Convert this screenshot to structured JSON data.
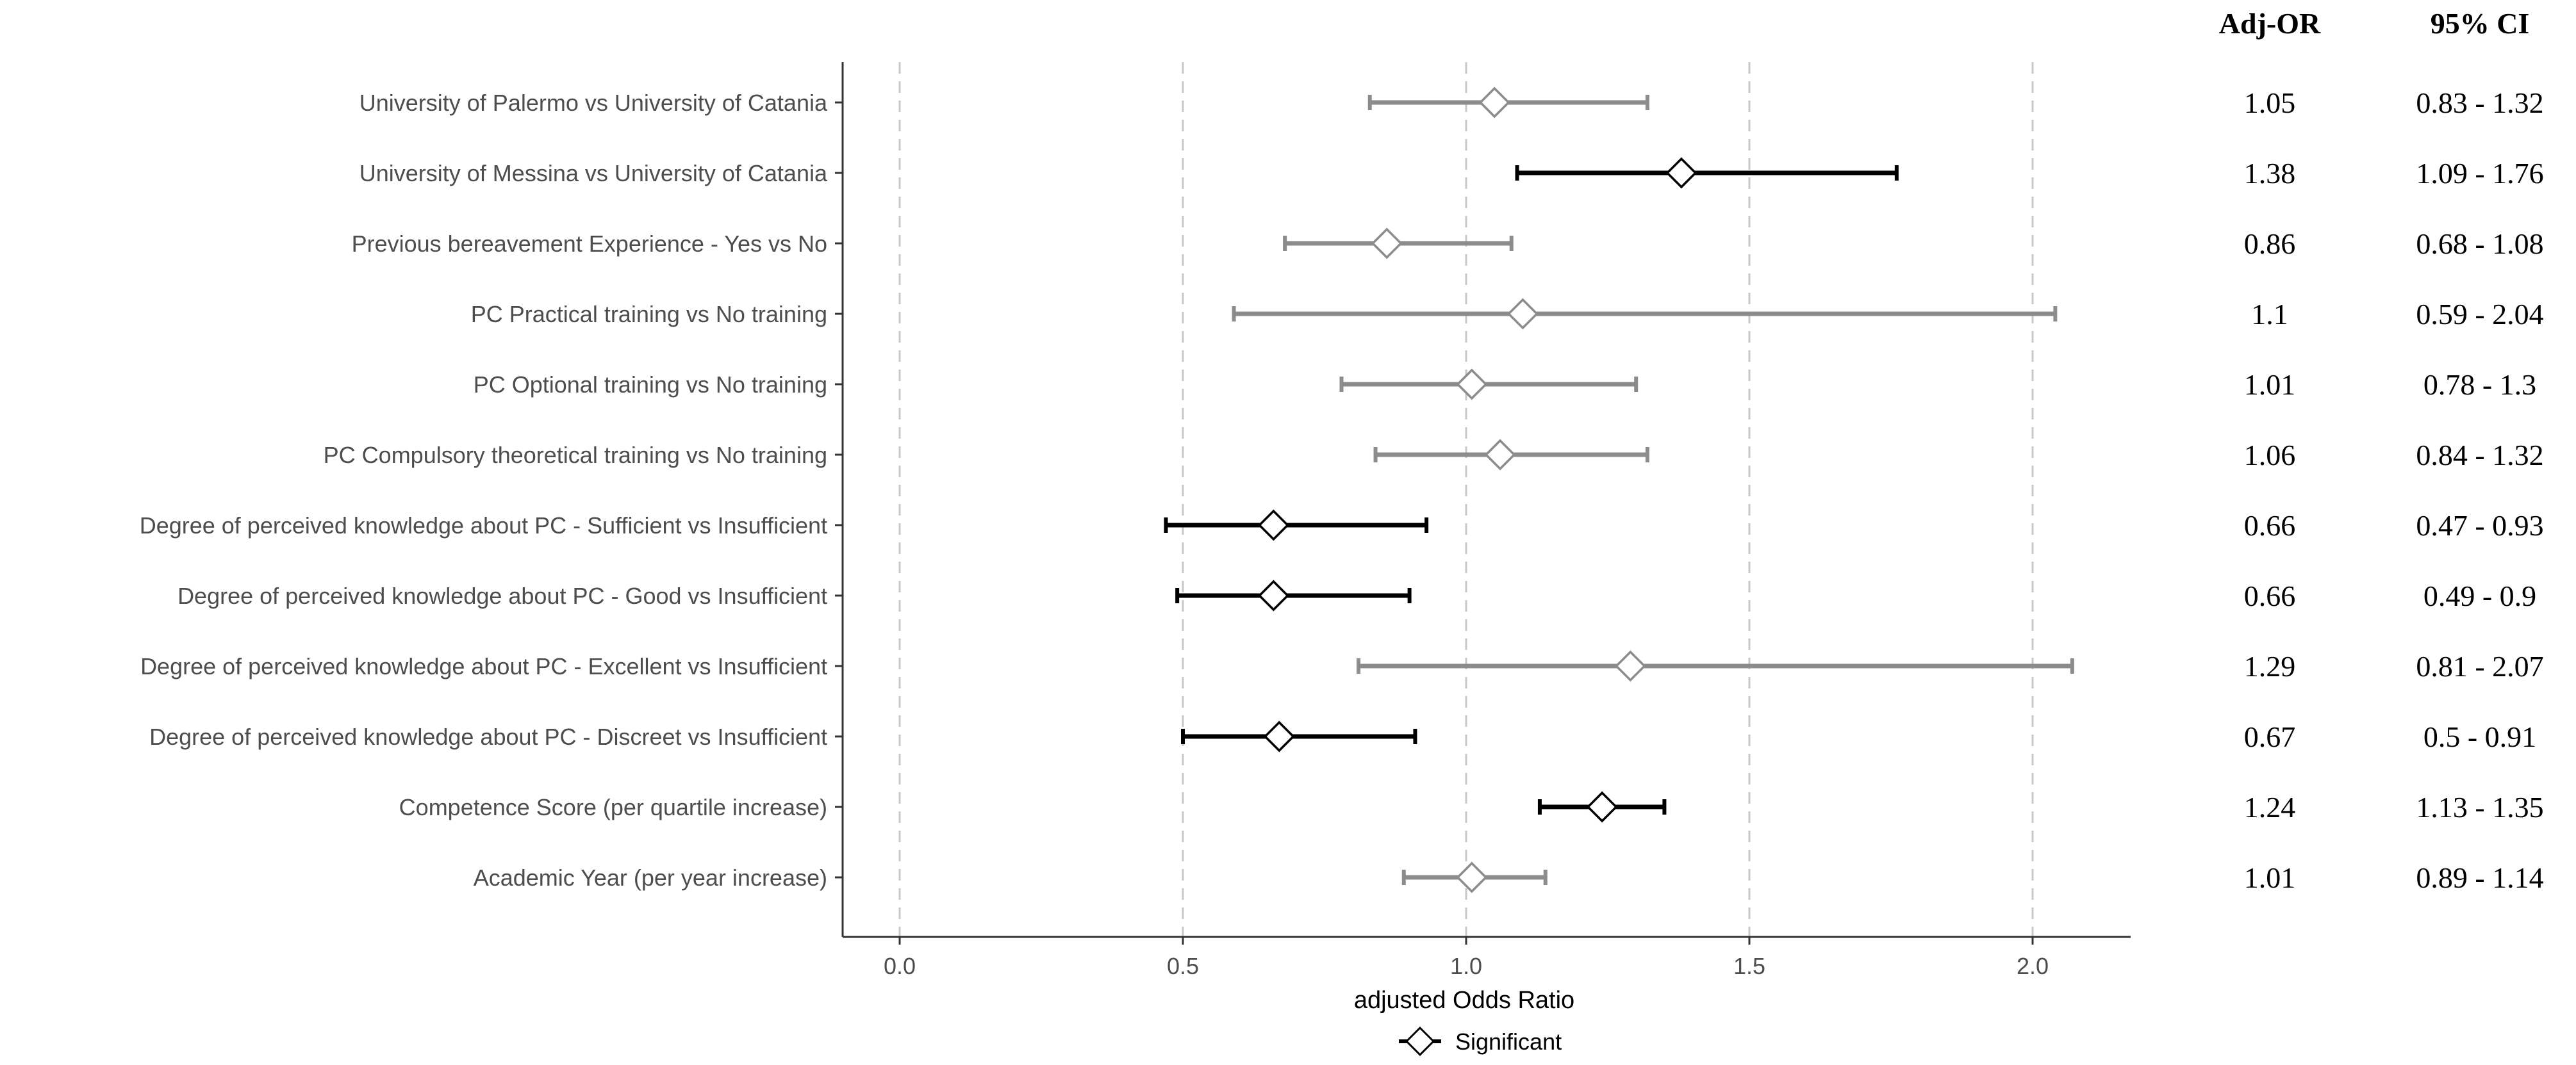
{
  "chart_data": {
    "type": "forest",
    "title": "",
    "xlabel": "adjusted Odds Ratio",
    "ylabel": "",
    "xlim": [
      -0.1,
      2.18
    ],
    "x_ticks": [
      0.0,
      0.5,
      1.0,
      1.5,
      2.0
    ],
    "x_tick_labels": [
      "0.0",
      "0.5",
      "1.0",
      "1.5",
      "2.0"
    ],
    "grid": "vertical dashed at ticks",
    "legend": {
      "position": "bottom",
      "entries": [
        "Significant"
      ]
    },
    "colors": {
      "significant": "#000000",
      "non_significant": "#8c8c8c",
      "grid": "#c8c8c8",
      "axis": "#333333"
    },
    "table_headers": {
      "or": "Adj-OR",
      "ci": "95% CI"
    },
    "rows": [
      {
        "label": "University of Palermo vs University of Catania",
        "or": 1.05,
        "lower": 0.83,
        "upper": 1.32,
        "or_text": "1.05",
        "ci_text": "0.83 - 1.32",
        "significant": false
      },
      {
        "label": "University of Messina vs University of Catania",
        "or": 1.38,
        "lower": 1.09,
        "upper": 1.76,
        "or_text": "1.38",
        "ci_text": "1.09 - 1.76",
        "significant": true
      },
      {
        "label": "Previous bereavement Experience - Yes vs No",
        "or": 0.86,
        "lower": 0.68,
        "upper": 1.08,
        "or_text": "0.86",
        "ci_text": "0.68 - 1.08",
        "significant": false
      },
      {
        "label": "PC Practical training vs No training",
        "or": 1.1,
        "lower": 0.59,
        "upper": 2.04,
        "or_text": "1.1",
        "ci_text": "0.59 - 2.04",
        "significant": false
      },
      {
        "label": "PC Optional training vs No training",
        "or": 1.01,
        "lower": 0.78,
        "upper": 1.3,
        "or_text": "1.01",
        "ci_text": "0.78 - 1.3",
        "significant": false
      },
      {
        "label": "PC Compulsory theoretical training vs No training",
        "or": 1.06,
        "lower": 0.84,
        "upper": 1.32,
        "or_text": "1.06",
        "ci_text": "0.84 - 1.32",
        "significant": false
      },
      {
        "label": "Degree of perceived knowledge about PC - Sufficient vs Insufficient",
        "or": 0.66,
        "lower": 0.47,
        "upper": 0.93,
        "or_text": "0.66",
        "ci_text": "0.47 - 0.93",
        "significant": true
      },
      {
        "label": "Degree of perceived knowledge about PC - Good vs Insufficient",
        "or": 0.66,
        "lower": 0.49,
        "upper": 0.9,
        "or_text": "0.66",
        "ci_text": "0.49 - 0.9",
        "significant": true
      },
      {
        "label": "Degree of perceived knowledge about PC - Excellent vs Insufficient",
        "or": 1.29,
        "lower": 0.81,
        "upper": 2.07,
        "or_text": "1.29",
        "ci_text": "0.81 - 2.07",
        "significant": false
      },
      {
        "label": "Degree of perceived knowledge about PC - Discreet vs Insufficient",
        "or": 0.67,
        "lower": 0.5,
        "upper": 0.91,
        "or_text": "0.67",
        "ci_text": "0.5 - 0.91",
        "significant": true
      },
      {
        "label": "Competence Score (per quartile increase)",
        "or": 1.24,
        "lower": 1.13,
        "upper": 1.35,
        "or_text": "1.24",
        "ci_text": "1.13 - 1.35",
        "significant": true
      },
      {
        "label": "Academic Year (per year increase)",
        "or": 1.01,
        "lower": 0.89,
        "upper": 1.14,
        "or_text": "1.01",
        "ci_text": "0.89 - 1.14",
        "significant": false
      }
    ]
  }
}
